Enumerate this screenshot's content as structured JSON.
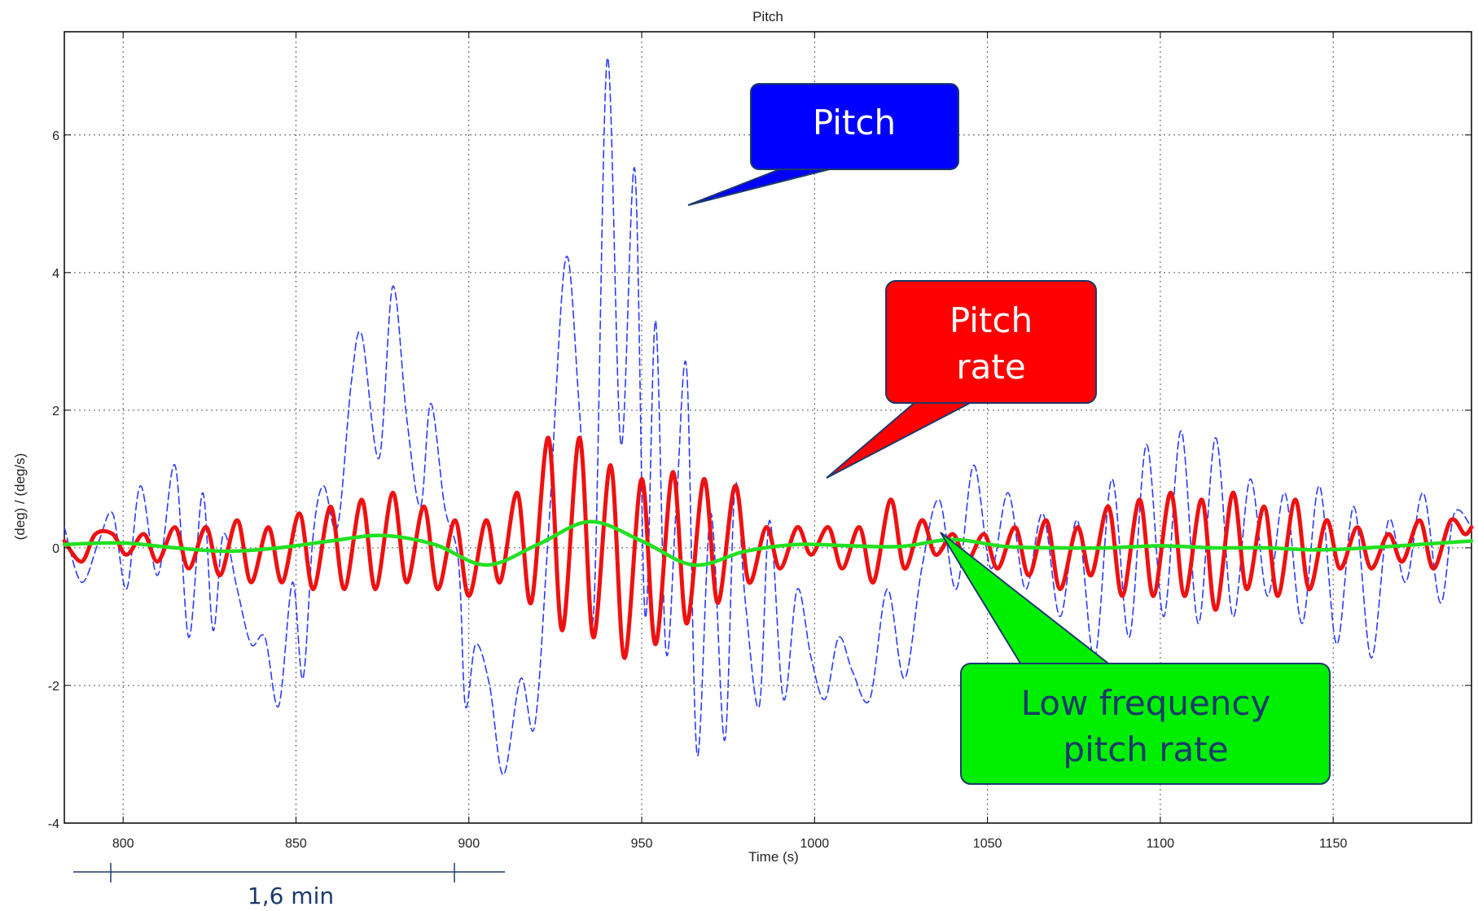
{
  "chart_data": {
    "type": "line",
    "title": "Pitch",
    "xlabel": "Time (s)",
    "ylabel": "(deg) / (deg/s)",
    "xlim": [
      783,
      1190
    ],
    "ylim": [
      -4,
      7.5
    ],
    "xticks": [
      800,
      850,
      900,
      950,
      1000,
      1050,
      1100,
      1150
    ],
    "yticks": [
      -4,
      -2,
      0,
      2,
      4,
      6
    ],
    "grid": true,
    "series": [
      {
        "name": "Pitch",
        "color": "#2b3bff",
        "style": "dashed",
        "x": [
          783,
          788,
          793,
          797,
          801,
          805,
          810,
          815,
          819,
          823,
          826,
          829,
          833,
          837,
          841,
          845,
          849,
          852,
          855,
          858,
          862,
          866,
          869,
          874,
          878,
          882,
          886,
          889,
          893,
          897,
          899,
          902,
          906,
          910,
          915,
          919,
          923,
          928,
          932,
          936,
          940,
          944,
          948,
          951,
          954,
          957,
          960,
          963,
          966,
          970,
          974,
          977,
          980,
          984,
          987,
          991,
          995,
          999,
          1003,
          1007,
          1011,
          1016,
          1021,
          1026,
          1031,
          1036,
          1041,
          1046,
          1051,
          1056,
          1061,
          1066,
          1071,
          1076,
          1081,
          1086,
          1091,
          1096,
          1101,
          1106,
          1111,
          1116,
          1121,
          1126,
          1131,
          1136,
          1141,
          1146,
          1151,
          1156,
          1161,
          1166,
          1171,
          1176,
          1181,
          1185,
          1190
        ],
        "y": [
          0.3,
          -0.5,
          0.1,
          0.5,
          -0.6,
          0.9,
          -0.4,
          1.2,
          -1.3,
          0.8,
          -1.2,
          0.2,
          -0.6,
          -1.4,
          -1.3,
          -2.3,
          -0.5,
          -1.9,
          0.2,
          0.9,
          0.3,
          2.4,
          3.1,
          1.3,
          3.8,
          1.9,
          0.6,
          2.1,
          0.6,
          -0.2,
          -2.3,
          -1.4,
          -2.0,
          -3.3,
          -1.9,
          -2.6,
          0.2,
          4.2,
          2.0,
          -1.0,
          7.1,
          1.5,
          5.5,
          -1.0,
          3.3,
          -1.5,
          0.6,
          2.6,
          -3.0,
          0.5,
          -2.8,
          0.9,
          -0.8,
          -2.3,
          0.4,
          -2.2,
          -0.6,
          -1.6,
          -2.2,
          -1.3,
          -1.8,
          -2.2,
          -0.6,
          -1.9,
          -0.3,
          0.7,
          -0.6,
          1.2,
          -0.3,
          0.8,
          -0.6,
          0.5,
          -1.0,
          0.4,
          -1.6,
          1.0,
          -1.3,
          1.5,
          -1.0,
          1.7,
          -1.1,
          1.6,
          -1.0,
          1.0,
          -0.7,
          0.8,
          -1.1,
          0.9,
          -1.4,
          0.6,
          -1.6,
          0.4,
          -0.5,
          0.8,
          -0.8,
          0.5,
          0.3
        ]
      },
      {
        "name": "Pitch rate",
        "color": "#ee1111",
        "style": "solid",
        "x": [
          783,
          788,
          792,
          797,
          801,
          806,
          810,
          815,
          819,
          824,
          828,
          833,
          837,
          842,
          846,
          851,
          855,
          860,
          864,
          869,
          873,
          878,
          882,
          887,
          891,
          896,
          900,
          905,
          909,
          914,
          918,
          923,
          927,
          932,
          936,
          941,
          945,
          950,
          954,
          959,
          963,
          968,
          972,
          977,
          981,
          986,
          990,
          995,
          999,
          1004,
          1008,
          1013,
          1017,
          1022,
          1026,
          1031,
          1035,
          1040,
          1044,
          1049,
          1053,
          1058,
          1062,
          1067,
          1071,
          1076,
          1080,
          1085,
          1089,
          1094,
          1098,
          1103,
          1107,
          1112,
          1116,
          1121,
          1125,
          1130,
          1134,
          1139,
          1143,
          1148,
          1152,
          1157,
          1161,
          1166,
          1170,
          1175,
          1179,
          1184,
          1188,
          1190
        ],
        "y": [
          0.1,
          -0.2,
          0.2,
          0.2,
          -0.1,
          0.2,
          -0.2,
          0.3,
          -0.3,
          0.3,
          -0.4,
          0.4,
          -0.5,
          0.3,
          -0.5,
          0.5,
          -0.6,
          0.6,
          -0.6,
          0.7,
          -0.6,
          0.8,
          -0.5,
          0.6,
          -0.6,
          0.4,
          -0.7,
          0.4,
          -0.5,
          0.8,
          -0.8,
          1.6,
          -1.2,
          1.6,
          -1.3,
          1.2,
          -1.6,
          1.0,
          -1.4,
          1.1,
          -1.1,
          1.0,
          -0.8,
          0.9,
          -0.5,
          0.3,
          -0.3,
          0.3,
          -0.1,
          0.3,
          -0.3,
          0.3,
          -0.5,
          0.7,
          -0.3,
          0.4,
          -0.1,
          0.2,
          -0.2,
          0.2,
          -0.3,
          0.3,
          -0.4,
          0.4,
          -0.6,
          0.3,
          -0.4,
          0.6,
          -0.7,
          0.7,
          -0.7,
          0.8,
          -0.7,
          0.7,
          -0.9,
          0.8,
          -0.6,
          0.6,
          -0.7,
          0.7,
          -0.6,
          0.4,
          -0.3,
          0.3,
          -0.3,
          0.2,
          -0.2,
          0.4,
          -0.3,
          0.4,
          0.2,
          0.3
        ]
      },
      {
        "name": "Low frequency pitch rate",
        "color": "#22e022",
        "style": "solid",
        "x": [
          783,
          800,
          815,
          830,
          845,
          860,
          875,
          890,
          905,
          920,
          935,
          950,
          965,
          980,
          995,
          1010,
          1025,
          1040,
          1055,
          1070,
          1085,
          1100,
          1115,
          1130,
          1145,
          1160,
          1175,
          1190
        ],
        "y": [
          0.05,
          0.07,
          0.0,
          -0.05,
          0.0,
          0.1,
          0.18,
          0.05,
          -0.25,
          0.05,
          0.38,
          0.1,
          -0.25,
          -0.05,
          0.05,
          0.03,
          0.02,
          0.12,
          0.02,
          0.0,
          0.0,
          0.03,
          0.0,
          0.0,
          -0.03,
          0.0,
          0.05,
          0.1
        ]
      }
    ]
  },
  "callouts": [
    {
      "lines": [
        "Pitch"
      ],
      "bg": "#0000ff",
      "text_color": "#ffffff"
    },
    {
      "lines": [
        "Pitch",
        "rate"
      ],
      "bg": "#ff0000",
      "text_color": "#ffffff"
    },
    {
      "lines": [
        "Low frequency",
        "pitch rate"
      ],
      "bg": "#00ee00",
      "text_color": "#1b3a6b"
    }
  ],
  "scale_bar": {
    "label": "1,6 min"
  }
}
